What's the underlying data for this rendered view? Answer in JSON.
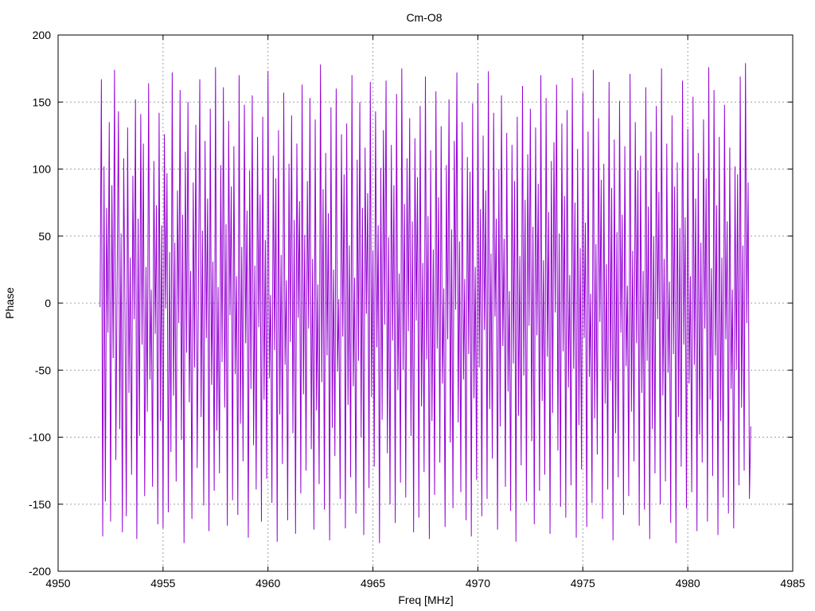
{
  "chart_data": {
    "type": "line",
    "title": "Cm-O8",
    "xlabel": "Freq [MHz]",
    "ylabel": "Phase",
    "xlim": [
      4950,
      4985
    ],
    "ylim": [
      -200,
      200
    ],
    "x_ticks": [
      4950,
      4955,
      4960,
      4965,
      4970,
      4975,
      4980,
      4985
    ],
    "y_ticks": [
      -200,
      -150,
      -100,
      -50,
      0,
      50,
      100,
      150,
      200
    ],
    "grid": true,
    "legend": "none",
    "series": [
      {
        "color": "#9400d3",
        "x_start": 4952.0,
        "x_step": 0.0625,
        "values": [
          -3,
          167,
          -174,
          102,
          -148,
          71,
          -22,
          135,
          -163,
          88,
          -41,
          174,
          -117,
          15,
          143,
          -94,
          52,
          -171,
          108,
          -6,
          -159,
          131,
          -67,
          34,
          -128,
          95,
          -12,
          152,
          -176,
          63,
          -99,
          141,
          -31,
          119,
          -144,
          27,
          -81,
          164,
          -57,
          10,
          -137,
          106,
          -23,
          73,
          -165,
          142,
          -88,
          58,
          -168,
          126,
          -4,
          97,
          -156,
          38,
          -111,
          172,
          -69,
          45,
          -133,
          84,
          -15,
          159,
          -102,
          66,
          -179,
          113,
          -37,
          150,
          -74,
          24,
          -161,
          90,
          -48,
          133,
          -123,
          8,
          167,
          -85,
          54,
          -151,
          121,
          -26,
          78,
          -170,
          145,
          -61,
          31,
          -140,
          176,
          -95,
          12,
          -127,
          103,
          -44,
          161,
          -78,
          59,
          -166,
          136,
          -9,
          87,
          -147,
          117,
          -53,
          20,
          -158,
          170,
          -90,
          42,
          -118,
          148,
          -30,
          69,
          -175,
          99,
          -64,
          155,
          -106,
          28,
          -139,
          124,
          -18,
          81,
          -163,
          139,
          -72,
          47,
          -131,
          173,
          -56,
          6,
          -149,
          110,
          -35,
          93,
          -178,
          129,
          -83,
          36,
          -120,
          157,
          -46,
          17,
          -162,
          104,
          -29,
          140,
          -97,
          62,
          -172,
          119,
          -11,
          76,
          -142,
          163,
          -68,
          51,
          -125,
          91,
          -19,
          153,
          -109,
          33,
          -169,
          137,
          -80,
          14,
          -135,
          178,
          -59,
          85,
          -154,
          112,
          -39,
          67,
          -177,
          146,
          -93,
          25,
          -114,
          160,
          -51,
          3,
          -146,
          126,
          -25,
          96,
          -168,
          134,
          -76,
          43,
          -130,
          170,
          -62,
          19,
          -157,
          107,
          -43,
          150,
          -100,
          71,
          -173,
          116,
          -8,
          82,
          -138,
          165,
          -70,
          39,
          -122,
          143,
          -33,
          58,
          -179,
          101,
          -87,
          129,
          -16,
          166,
          -112,
          49,
          -150,
          118,
          -28,
          88,
          -164,
          156,
          -65,
          22,
          -134,
          175,
          -50,
          74,
          -145,
          108,
          -21,
          138,
          -99,
          61,
          -171,
          123,
          -13,
          94,
          -160,
          147,
          -77,
          30,
          -126,
          169,
          -42,
          65,
          -176,
          114,
          -88,
          40,
          -143,
          158,
          -34,
          79,
          -119,
          132,
          -60,
          11,
          -167,
          103,
          -27,
          152,
          -104,
          55,
          -153,
          121,
          -5,
          172,
          -89,
          46,
          -141,
          135,
          -57,
          18,
          -162,
          109,
          -38,
          98,
          -174,
          149,
          -71,
          27,
          -132,
          164,
          -48,
          70,
          -159,
          125,
          -20,
          84,
          -146,
          173,
          -79,
          37,
          -116,
          142,
          -10,
          63,
          -169,
          100,
          -92,
          155,
          -32,
          48,
          -137,
          127,
          -66,
          9,
          -155,
          118,
          -45,
          91,
          -178,
          139,
          -84,
          35,
          -121,
          162,
          -54,
          77,
          -148,
          111,
          -17,
          145,
          -103,
          57,
          -165,
          131,
          -24,
          89,
          -140,
          170,
          -73,
          32,
          -128,
          153,
          -40,
          68,
          -172,
          106,
          -82,
          120,
          -7,
          163,
          -110,
          52,
          -152,
          134,
          -36,
          80,
          -160,
          144,
          -63,
          21,
          -136,
          168,
          -49,
          75,
          -175,
          115,
          -91,
          41,
          -124,
          157,
          -26,
          60,
          -167,
          128,
          -55,
          7,
          -149,
          174,
          -86,
          44,
          -113,
          138,
          -14,
          92,
          -161,
          104,
          -75,
          29,
          -139,
          165,
          -58,
          86,
          -177,
          122,
          -97,
          53,
          -130,
          151,
          -22,
          66,
          -158,
          117,
          -47,
          13,
          -144,
          171,
          -81,
          39,
          -118,
          135,
          -30,
          99,
          -166,
          110,
          -67,
          24,
          -154,
          161,
          -43,
          72,
          -176,
          128,
          -94,
          50,
          -127,
          147,
          -12,
          83,
          -150,
          175,
          -69,
          33,
          -133,
          119,
          -52,
          16,
          -164,
          140,
          -38,
          87,
          -179,
          105,
          -85,
          56,
          -122,
          166,
          -31,
          64,
          -153,
          130,
          -60,
          20,
          -141,
          154,
          -46,
          78,
          -170,
          112,
          -98,
          45,
          -119,
          137,
          -19,
          93,
          -163,
          176,
          -72,
          26,
          -129,
          159,
          -39,
          73,
          -173,
          124,
          -88,
          34,
          -145,
          148,
          -27,
          61,
          -157,
          116,
          -64,
          10,
          -168,
          102,
          -50,
          96,
          -136,
          169,
          -78,
          43,
          -125,
          179,
          -15,
          90,
          -146,
          -92
        ]
      }
    ]
  }
}
